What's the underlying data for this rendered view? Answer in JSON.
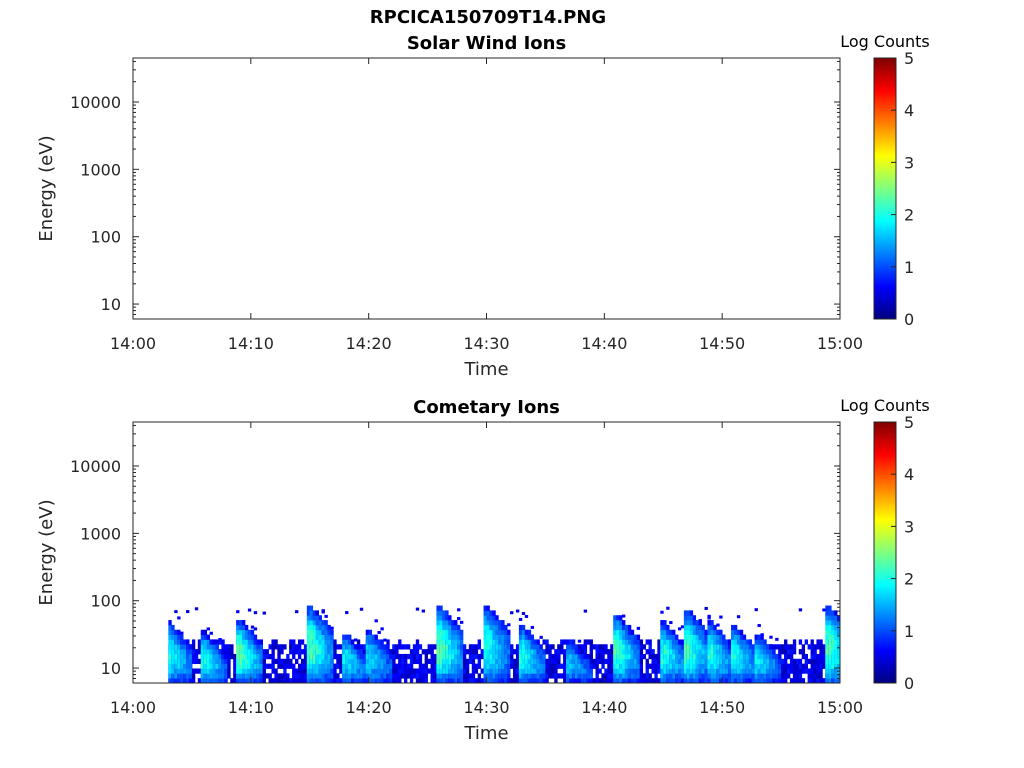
{
  "figure": {
    "title": "RPCICA150709T14.PNG"
  },
  "chart_data": [
    {
      "type": "heatmap",
      "title": "Solar Wind Ions",
      "xlabel": "Time",
      "ylabel": "Energy (eV)",
      "x_ticks": [
        "14:00",
        "14:10",
        "14:20",
        "14:30",
        "14:40",
        "14:50",
        "15:00"
      ],
      "y_ticks": [
        "10",
        "100",
        "1000",
        "10000"
      ],
      "y_scale": "log",
      "y_range": [
        6,
        45000
      ],
      "x_range": [
        "14:00",
        "15:00"
      ],
      "colorbar": {
        "label": "Log Counts",
        "range": [
          0,
          5
        ],
        "ticks": [
          "0",
          "1",
          "2",
          "3",
          "4",
          "5"
        ],
        "colormap": "jet"
      },
      "bursts": []
    },
    {
      "type": "heatmap",
      "title": "Cometary Ions",
      "xlabel": "Time",
      "ylabel": "Energy (eV)",
      "x_ticks": [
        "14:00",
        "14:10",
        "14:20",
        "14:30",
        "14:40",
        "14:50",
        "15:00"
      ],
      "y_ticks": [
        "10",
        "100",
        "1000",
        "10000"
      ],
      "y_scale": "log",
      "y_range": [
        6,
        45000
      ],
      "x_range": [
        "14:00",
        "15:00"
      ],
      "colorbar": {
        "label": "Log Counts",
        "range": [
          0,
          5
        ],
        "ticks": [
          "0",
          "1",
          "2",
          "3",
          "4",
          "5"
        ],
        "colormap": "jet"
      },
      "data_start": "14:03",
      "data_end": "15:00",
      "background_energy_range_eV": [
        6,
        20
      ],
      "background_log_counts": 0.5,
      "bursts": [
        {
          "time": "14:03",
          "e_min": 6,
          "e_max": 45,
          "peak": 2.0
        },
        {
          "time": "14:06",
          "e_min": 6,
          "e_max": 32,
          "peak": 2.0
        },
        {
          "time": "14:09",
          "e_min": 6,
          "e_max": 50,
          "peak": 2.3
        },
        {
          "time": "14:15",
          "e_min": 6,
          "e_max": 80,
          "peak": 2.3
        },
        {
          "time": "14:18",
          "e_min": 6,
          "e_max": 30,
          "peak": 1.8
        },
        {
          "time": "14:20",
          "e_min": 6,
          "e_max": 35,
          "peak": 1.7
        },
        {
          "time": "14:26",
          "e_min": 6,
          "e_max": 80,
          "peak": 2.3
        },
        {
          "time": "14:30",
          "e_min": 6,
          "e_max": 80,
          "peak": 2.0
        },
        {
          "time": "14:33",
          "e_min": 6,
          "e_max": 40,
          "peak": 2.0
        },
        {
          "time": "14:37",
          "e_min": 6,
          "e_max": 25,
          "peak": 1.6
        },
        {
          "time": "14:41",
          "e_min": 6,
          "e_max": 60,
          "peak": 2.2
        },
        {
          "time": "14:45",
          "e_min": 6,
          "e_max": 45,
          "peak": 2.0
        },
        {
          "time": "14:47",
          "e_min": 6,
          "e_max": 70,
          "peak": 2.2
        },
        {
          "time": "14:49",
          "e_min": 6,
          "e_max": 45,
          "peak": 2.0
        },
        {
          "time": "14:51",
          "e_min": 6,
          "e_max": 40,
          "peak": 2.0
        },
        {
          "time": "14:53",
          "e_min": 6,
          "e_max": 30,
          "peak": 1.8
        },
        {
          "time": "14:59",
          "e_min": 6,
          "e_max": 80,
          "peak": 2.2
        }
      ]
    }
  ]
}
